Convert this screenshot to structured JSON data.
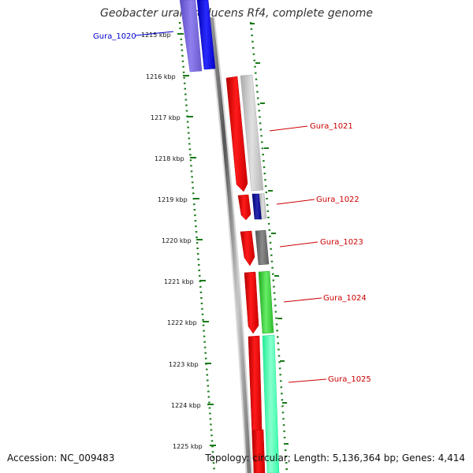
{
  "title": "Geobacter uraniireducens Rf4, complete genome",
  "footer": {
    "accession": "Accession: NC_009483",
    "summary": "Topology: circular; Length: 5,136,364 bp; Genes: 4,414"
  },
  "axis_ticks": [
    {
      "label": "1215 kbp"
    },
    {
      "label": "1216 kbp"
    },
    {
      "label": "1217 kbp"
    },
    {
      "label": "1218 kbp"
    },
    {
      "label": "1219 kbp"
    },
    {
      "label": "1220 kbp"
    },
    {
      "label": "1221 kbp"
    },
    {
      "label": "1222 kbp"
    },
    {
      "label": "1223 kbp"
    },
    {
      "label": "1224 kbp"
    },
    {
      "label": "1225 kbp"
    }
  ],
  "genes": [
    {
      "name": "Gura_1020",
      "color": "#0000cc"
    },
    {
      "name": "Gura_1021",
      "color": "#cc0000"
    },
    {
      "name": "Gura_1022",
      "color": "#cc0000"
    },
    {
      "name": "Gura_1023",
      "color": "#cc0000"
    },
    {
      "name": "Gura_1024",
      "color": "#cc0000"
    },
    {
      "name": "Gura_1025",
      "color": "#cc0000"
    }
  ],
  "colors": {
    "backbone": "#777777",
    "ruler": "#1a7a1a",
    "cds": "#ff0000",
    "blue_feature": "#1010ee",
    "purple_feature": "#6a5acd",
    "navy_feature": "#000080",
    "gray_feature": "#c0c0c0",
    "dark_gray_feature": "#666666",
    "green_feature": "#33cc33",
    "aqua_feature": "#33ffaa"
  }
}
